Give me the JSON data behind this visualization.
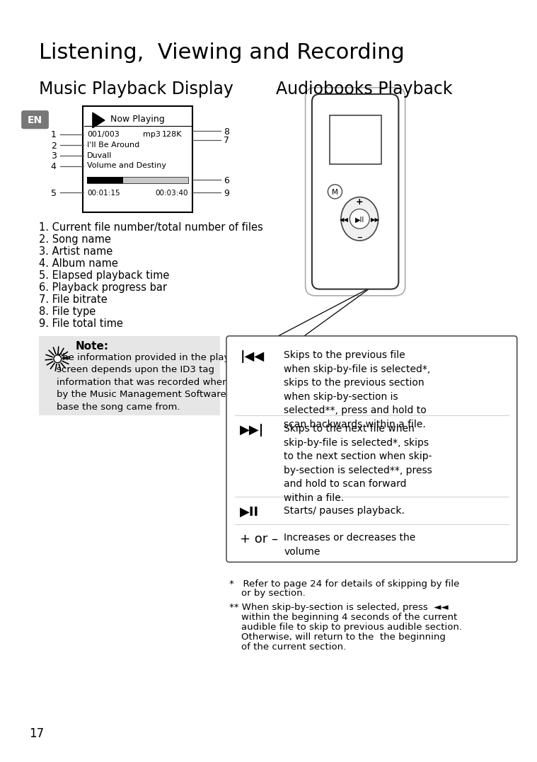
{
  "title": "Listening,  Viewing and Recording",
  "subtitle_left": "Music Playback Display",
  "subtitle_right": "Audiobooks Playback",
  "bg_color": "#ffffff",
  "title_color": "#000000",
  "note_bg": "#e6e6e6",
  "page_number": "17",
  "numbered_items": [
    "1. Current file number/total number of files",
    "2. Song name",
    "3. Artist name",
    "4. Album name",
    "5. Elapsed playback time",
    "6. Playback progress bar",
    "7. File bitrate",
    "8. File type",
    "9. File total time"
  ],
  "note_title": "Note:",
  "note_text": "    The information provided in the playback\n    screen depends upon the ID3 tag\n    information that was recorded when created\n    by the Music Management Software or Data\n    base the song came from.",
  "row1_text": "Skips to the previous file\nwhen skip-by-file is selected*,\nskips to the previous section\nwhen skip-by-section is\nselected**, press and hold to\nscan backwards within a file.",
  "row2_text": "Skips to the next file when\nskip-by-file is selected*, skips\nto the next section when skip-\nby-section is selected**, press\nand hold to scan forward\nwithin a file.",
  "row3_text": "Starts/ pauses playback.",
  "row4_text": "Increases or decreases the\nvolume",
  "fn1_line1": "*   Refer to page 24 for details of skipping by file",
  "fn1_line2": "    or by section.",
  "fn2_line1": "** When skip-by-section is selected, press  ◄◄",
  "fn2_line2": "    within the beginning 4 seconds of the current",
  "fn2_line3": "    audible file to skip to previous audible section.",
  "fn2_line4": "    Otherwise, will return to the  the beginning",
  "fn2_line5": "    of the current section."
}
